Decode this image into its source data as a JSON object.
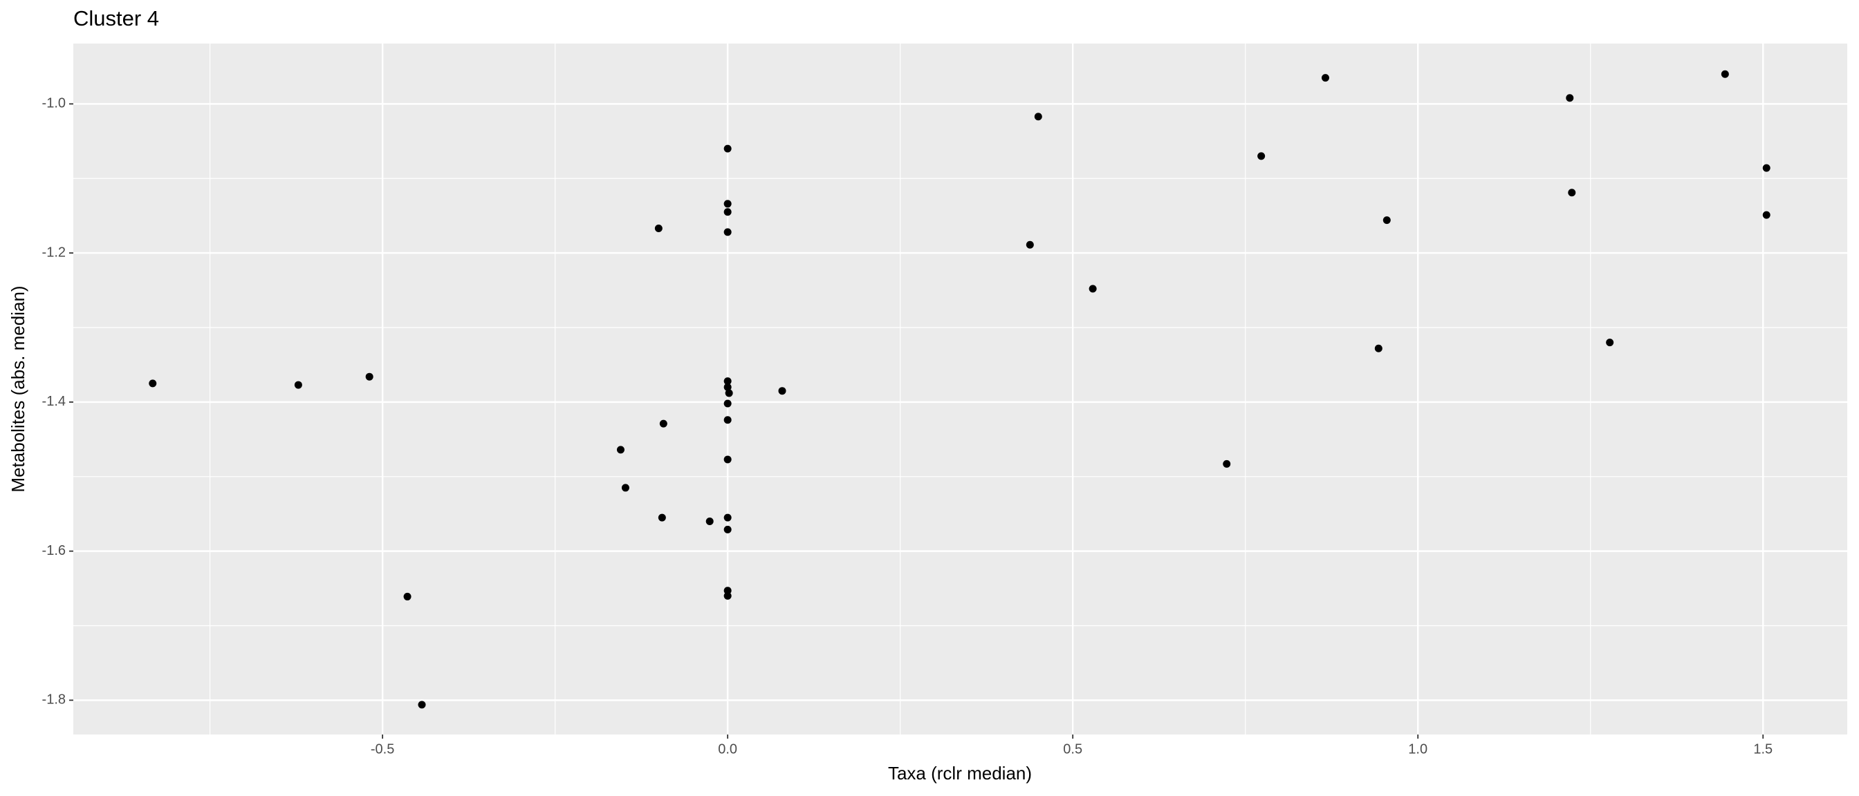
{
  "chart_data": {
    "type": "scatter",
    "title": "Cluster 4",
    "x_label": "Taxa (rclr median)",
    "y_label": "Metabolites (abs. median)",
    "color": "#000000",
    "grid": true,
    "minor_grid": true,
    "xlim": [
      -0.948,
      1.622
    ],
    "ylim": [
      -1.846,
      -0.919
    ],
    "xticks": [
      -0.5,
      {
        "value": 0,
        "label": "0.0"
      },
      0.5,
      {
        "value": 1,
        "label": "1.0"
      },
      1.5
    ],
    "yticks": [
      -1.8,
      -1.6,
      -1.4,
      -1.2,
      {
        "value": -1,
        "label": "-1.0"
      }
    ],
    "x": [
      -0.833,
      -0.622,
      -0.519,
      -0.464,
      -0.443,
      -0.1,
      -0.093,
      -0.155,
      -0.148,
      -0.095,
      -0.026,
      0,
      0,
      0,
      0,
      0,
      0,
      0.002,
      0,
      0,
      0,
      0,
      0,
      0,
      0,
      0.079,
      0.438,
      0.45,
      0.529,
      0.723,
      0.773,
      0.866,
      0.943,
      0.955,
      1.22,
      1.223,
      1.278,
      1.445,
      1.505,
      1.505
    ],
    "values": [
      -1.375,
      -1.377,
      -1.366,
      -1.661,
      -1.806,
      -1.167,
      -1.429,
      -1.464,
      -1.515,
      -1.555,
      -1.56,
      -1.06,
      -1.134,
      -1.145,
      -1.172,
      -1.372,
      -1.38,
      -1.388,
      -1.402,
      -1.424,
      -1.477,
      -1.555,
      -1.571,
      -1.653,
      -1.66,
      -1.385,
      -1.189,
      -1.017,
      -1.248,
      -1.483,
      -1.07,
      -0.965,
      -1.328,
      -1.156,
      -0.992,
      -1.119,
      -1.32,
      -0.96,
      -1.086,
      -1.149
    ]
  }
}
